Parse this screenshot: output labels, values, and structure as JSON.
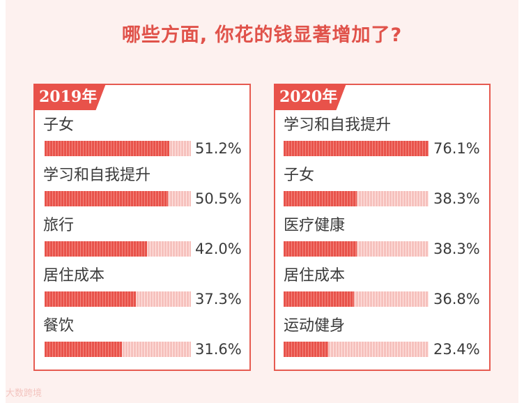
{
  "title": "哪些方面, 你花的钱显著增加了?",
  "watermark": "大数跨境",
  "colors": {
    "accent": "#e8524a",
    "bar_fill": "#e8534b",
    "bar_track": "#f6c1bd",
    "panel_border": "#e65a50",
    "background": "#fdf1ef"
  },
  "chart_data": [
    {
      "type": "bar",
      "orientation": "horizontal",
      "title": "2019年",
      "categories": [
        "子女",
        "学习和自我提升",
        "旅行",
        "居住成本",
        "餐饮"
      ],
      "values": [
        51.2,
        50.5,
        42.0,
        37.3,
        31.6
      ],
      "value_labels": [
        "51.2%",
        "50.5%",
        "42.0%",
        "37.3%",
        "31.6%"
      ],
      "unit": "%",
      "xlim": [
        0,
        60
      ],
      "grid": false
    },
    {
      "type": "bar",
      "orientation": "horizontal",
      "title": "2020年",
      "categories": [
        "学习和自我提升",
        "子女",
        "医疗健康",
        "居住成本",
        "运动健身"
      ],
      "values": [
        76.1,
        38.3,
        38.3,
        36.8,
        23.4
      ],
      "value_labels": [
        "76.1%",
        "38.3%",
        "38.3%",
        "36.8%",
        "23.4%"
      ],
      "unit": "%",
      "xlim": [
        0,
        76.1
      ],
      "grid": false
    }
  ]
}
